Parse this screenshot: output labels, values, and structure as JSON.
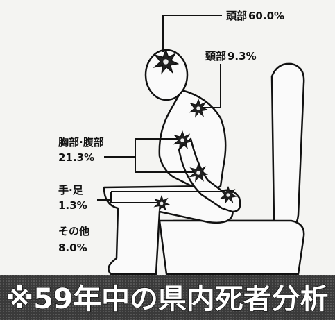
{
  "labels": [
    {
      "part": "頭部",
      "value": "60.0%"
    },
    {
      "part": "頸部",
      "value": "9.3%"
    },
    {
      "part": "胸部·腹部",
      "value": "21.3%"
    },
    {
      "part": "手·足",
      "value": "1.3%"
    },
    {
      "part": "その他",
      "value": "8.0%"
    }
  ],
  "footer": "※59年中の県内死者分析"
}
